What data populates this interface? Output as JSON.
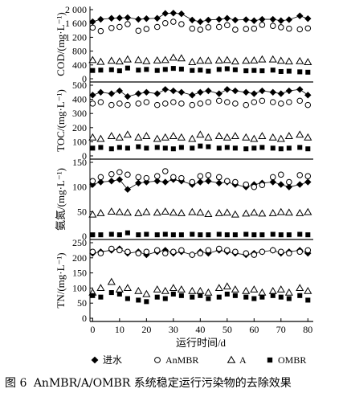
{
  "figure": {
    "caption_number": "图 6",
    "caption_text": "AnMBR/A/OMBR 系统稳定运行污染物的去除效果"
  },
  "chart_data": {
    "type": "scatter",
    "xlabel": "运行时间/d",
    "x_ticks": [
      0,
      10,
      20,
      30,
      40,
      50,
      60,
      70,
      80
    ],
    "xlim": [
      -1,
      82
    ],
    "legend": {
      "placement": "bottom",
      "entries": [
        {
          "name": "进水",
          "marker": "diamond-filled"
        },
        {
          "name": "AnMBR",
          "marker": "circle-open"
        },
        {
          "name": "A",
          "marker": "triangle-open"
        },
        {
          "name": "OMBR",
          "marker": "square-filled"
        }
      ]
    },
    "panels": [
      {
        "id": "cod",
        "ylabel": "COD/(mg·L⁻¹)",
        "ylim": [
          0,
          2000
        ],
        "y_ticks": [
          0,
          400,
          800,
          1200,
          1600,
          2000
        ],
        "y_tick_labels": [
          "0",
          "400",
          "800",
          "1 200",
          "1 600",
          "2 000"
        ],
        "series": [
          {
            "name": "进水",
            "x": [
              0,
              3,
              7,
              10,
              13,
              17,
              20,
              24,
              27,
              30,
              33,
              37,
              40,
              43,
              47,
              50,
              53,
              57,
              60,
              63,
              67,
              70,
              73,
              77,
              80
            ],
            "values": [
              1650,
              1720,
              1750,
              1760,
              1770,
              1720,
              1740,
              1750,
              1890,
              1900,
              1880,
              1700,
              1650,
              1700,
              1720,
              1750,
              1700,
              1710,
              1680,
              1720,
              1720,
              1680,
              1710,
              1820,
              1740
            ]
          },
          {
            "name": "AnMBR",
            "x": [
              0,
              3,
              7,
              10,
              13,
              17,
              20,
              24,
              27,
              30,
              33,
              37,
              40,
              43,
              47,
              50,
              53,
              57,
              60,
              63,
              67,
              70,
              73,
              77,
              80
            ],
            "values": [
              1480,
              1380,
              1470,
              1500,
              1580,
              1390,
              1440,
              1500,
              1610,
              1650,
              1580,
              1450,
              1420,
              1490,
              1500,
              1550,
              1420,
              1440,
              1450,
              1560,
              1530,
              1490,
              1450,
              1430,
              1460
            ]
          },
          {
            "name": "A",
            "x": [
              0,
              3,
              7,
              10,
              13,
              17,
              20,
              24,
              27,
              30,
              33,
              37,
              40,
              43,
              47,
              50,
              53,
              57,
              60,
              63,
              67,
              70,
              73,
              77,
              80
            ],
            "values": [
              540,
              490,
              520,
              500,
              560,
              540,
              510,
              530,
              540,
              610,
              590,
              480,
              520,
              520,
              530,
              540,
              500,
              520,
              530,
              560,
              560,
              520,
              500,
              510,
              480
            ]
          },
          {
            "name": "OMBR",
            "x": [
              0,
              3,
              7,
              10,
              13,
              17,
              20,
              24,
              27,
              30,
              33,
              37,
              40,
              43,
              47,
              50,
              53,
              57,
              60,
              63,
              67,
              70,
              73,
              77,
              80
            ],
            "values": [
              240,
              250,
              260,
              230,
              310,
              250,
              270,
              240,
              270,
              300,
              280,
              240,
              250,
              220,
              270,
              290,
              260,
              230,
              240,
              230,
              250,
              210,
              220,
              200,
              190
            ]
          }
        ]
      },
      {
        "id": "toc",
        "ylabel": "TOC/(mg·L⁻¹)",
        "ylim": [
          0,
          500
        ],
        "y_ticks": [
          0,
          100,
          200,
          300,
          400,
          500
        ],
        "series": [
          {
            "name": "进水",
            "x": [
              0,
              3,
              7,
              10,
              13,
              17,
              20,
              24,
              27,
              30,
              33,
              37,
              40,
              43,
              47,
              50,
              53,
              57,
              60,
              63,
              67,
              70,
              73,
              77,
              80
            ],
            "values": [
              430,
              450,
              440,
              460,
              420,
              440,
              450,
              440,
              470,
              460,
              450,
              430,
              450,
              460,
              440,
              470,
              460,
              450,
              440,
              460,
              450,
              440,
              460,
              470,
              430
            ]
          },
          {
            "name": "AnMBR",
            "x": [
              0,
              3,
              7,
              10,
              13,
              17,
              20,
              24,
              27,
              30,
              33,
              37,
              40,
              43,
              47,
              50,
              53,
              57,
              60,
              63,
              67,
              70,
              73,
              77,
              80
            ],
            "values": [
              370,
              380,
              360,
              370,
              360,
              370,
              380,
              360,
              370,
              380,
              370,
              360,
              370,
              380,
              390,
              380,
              370,
              360,
              380,
              390,
              380,
              370,
              380,
              390,
              360
            ]
          },
          {
            "name": "A",
            "x": [
              0,
              3,
              7,
              10,
              13,
              17,
              20,
              24,
              27,
              30,
              33,
              37,
              40,
              43,
              47,
              50,
              53,
              57,
              60,
              63,
              67,
              70,
              73,
              77,
              80
            ],
            "values": [
              130,
              120,
              140,
              130,
              150,
              130,
              140,
              120,
              130,
              140,
              130,
              120,
              150,
              130,
              140,
              130,
              140,
              130,
              120,
              140,
              130,
              120,
              140,
              150,
              130
            ]
          },
          {
            "name": "OMBR",
            "x": [
              0,
              3,
              7,
              10,
              13,
              17,
              20,
              24,
              27,
              30,
              33,
              37,
              40,
              43,
              47,
              50,
              53,
              57,
              60,
              63,
              67,
              70,
              73,
              77,
              80
            ],
            "values": [
              55,
              60,
              50,
              60,
              55,
              65,
              55,
              60,
              55,
              50,
              60,
              55,
              70,
              65,
              55,
              60,
              55,
              50,
              55,
              60,
              55,
              50,
              55,
              60,
              50
            ]
          }
        ]
      },
      {
        "id": "nh3",
        "ylabel": "氨氮/(mg·L⁻¹)",
        "ylim": [
          0,
          150
        ],
        "y_ticks": [
          0,
          50,
          100,
          150
        ],
        "series": [
          {
            "name": "进水",
            "x": [
              0,
              3,
              7,
              10,
              13,
              17,
              20,
              24,
              27,
              30,
              33,
              37,
              40,
              43,
              47,
              50,
              53,
              57,
              60,
              63,
              67,
              70,
              73,
              77,
              80
            ],
            "values": [
              105,
              110,
              112,
              115,
              95,
              108,
              110,
              112,
              110,
              115,
              112,
              105,
              110,
              112,
              108,
              110,
              105,
              100,
              105,
              108,
              110,
              105,
              100,
              105,
              110
            ]
          },
          {
            "name": "AnMBR",
            "x": [
              0,
              3,
              7,
              10,
              13,
              17,
              20,
              24,
              27,
              30,
              33,
              37,
              40,
              43,
              47,
              50,
              53,
              57,
              60,
              63,
              67,
              70,
              73,
              77,
              80
            ],
            "values": [
              112,
              120,
              126,
              130,
              125,
              120,
              118,
              122,
              132,
              120,
              118,
              110,
              122,
              124,
              120,
              112,
              110,
              105,
              100,
              104,
              120,
              125,
              110,
              124,
              122
            ]
          },
          {
            "name": "A",
            "x": [
              0,
              3,
              7,
              10,
              13,
              17,
              20,
              24,
              27,
              30,
              33,
              37,
              40,
              43,
              47,
              50,
              53,
              57,
              60,
              63,
              67,
              70,
              73,
              77,
              80
            ],
            "values": [
              44,
              47,
              50,
              49,
              48,
              47,
              49,
              48,
              50,
              48,
              47,
              49,
              48,
              45,
              47,
              48,
              44,
              46,
              48,
              46,
              47,
              49,
              48,
              47,
              49
            ]
          },
          {
            "name": "OMBR",
            "x": [
              0,
              3,
              7,
              10,
              13,
              17,
              20,
              24,
              27,
              30,
              33,
              37,
              40,
              43,
              47,
              50,
              53,
              57,
              60,
              63,
              67,
              70,
              73,
              77,
              80
            ],
            "values": [
              3,
              3,
              4,
              3,
              7,
              3,
              4,
              3,
              4,
              3,
              3,
              4,
              3,
              3,
              4,
              3,
              3,
              4,
              3,
              3,
              4,
              3,
              3,
              4,
              3
            ]
          }
        ]
      },
      {
        "id": "tn",
        "ylabel": "TN/(mg·L⁻¹)",
        "ylim": [
          0,
          250
        ],
        "y_ticks": [
          0,
          50,
          100,
          150,
          200,
          250
        ],
        "series": [
          {
            "name": "进水",
            "x": [
              0,
              3,
              7,
              10,
              13,
              17,
              20,
              24,
              27,
              30,
              33,
              37,
              40,
              43,
              47,
              50,
              53,
              57,
              60,
              63,
              67,
              70,
              73,
              77,
              80
            ],
            "values": [
              215,
              220,
              225,
              230,
              215,
              220,
              210,
              220,
              225,
              215,
              220,
              210,
              220,
              215,
              225,
              220,
              215,
              210,
              215,
              220,
              225,
              215,
              220,
              225,
              215
            ]
          },
          {
            "name": "AnMBR",
            "x": [
              0,
              3,
              7,
              10,
              13,
              17,
              20,
              24,
              27,
              30,
              33,
              37,
              40,
              43,
              47,
              50,
              53,
              57,
              60,
              63,
              67,
              70,
              73,
              77,
              80
            ],
            "values": [
              220,
              215,
              230,
              225,
              220,
              215,
              220,
              225,
              215,
              220,
              225,
              210,
              215,
              225,
              230,
              225,
              220,
              215,
              210,
              220,
              225,
              220,
              215,
              220,
              225
            ]
          },
          {
            "name": "A",
            "x": [
              0,
              3,
              7,
              10,
              13,
              17,
              20,
              24,
              27,
              30,
              33,
              37,
              40,
              43,
              47,
              50,
              53,
              57,
              60,
              63,
              67,
              70,
              73,
              77,
              80
            ],
            "values": [
              85,
              100,
              120,
              95,
              100,
              90,
              80,
              95,
              90,
              100,
              95,
              90,
              90,
              85,
              100,
              105,
              95,
              90,
              95,
              85,
              90,
              95,
              85,
              100,
              90
            ]
          },
          {
            "name": "OMBR",
            "x": [
              0,
              3,
              7,
              10,
              13,
              17,
              20,
              24,
              27,
              30,
              33,
              37,
              40,
              43,
              47,
              50,
              53,
              57,
              60,
              63,
              67,
              70,
              73,
              77,
              80
            ],
            "values": [
              75,
              70,
              85,
              80,
              65,
              60,
              55,
              70,
              65,
              80,
              75,
              70,
              75,
              65,
              70,
              80,
              75,
              70,
              65,
              70,
              75,
              70,
              65,
              75,
              60
            ]
          }
        ]
      }
    ]
  }
}
